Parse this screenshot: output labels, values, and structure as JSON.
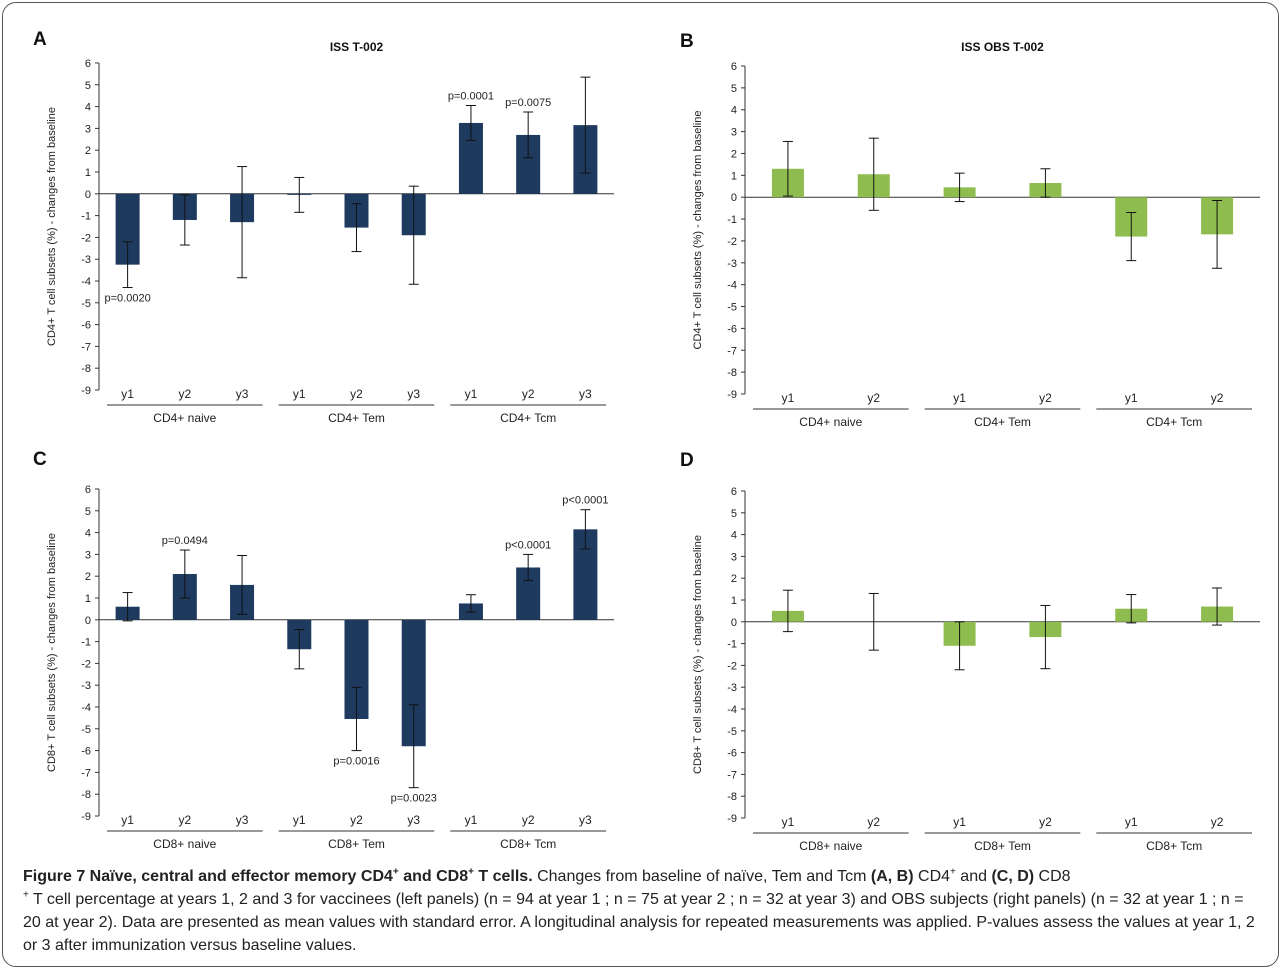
{
  "colors": {
    "vaccinee_bar": "#1e3a5f",
    "obs_bar": "#8fbc4f",
    "axis": "#333333"
  },
  "chart_data": [
    {
      "panel": "A",
      "title": "ISS T-002",
      "type": "bar",
      "ylabel": "CD4+ T cell subsets (%) - changes from baseline",
      "ylim": [
        -9,
        6
      ],
      "yticks": [
        6,
        5,
        4,
        3,
        2,
        1,
        0,
        -1,
        -2,
        -3,
        -4,
        -5,
        -6,
        -7,
        -8,
        -9
      ],
      "color": "#1e3a5f",
      "groups": [
        {
          "label": "CD4+ naive",
          "bars": [
            {
              "x": "y1",
              "value": -3.25,
              "err": 1.05,
              "p": "p=0.0020"
            },
            {
              "x": "y2",
              "value": -1.2,
              "err": 1.15,
              "p": ""
            },
            {
              "x": "y3",
              "value": -1.3,
              "err": 2.55,
              "p": ""
            }
          ]
        },
        {
          "label": "CD4+ Tem",
          "bars": [
            {
              "x": "y1",
              "value": -0.05,
              "err": 0.8,
              "p": ""
            },
            {
              "x": "y2",
              "value": -1.55,
              "err": 1.1,
              "p": ""
            },
            {
              "x": "y3",
              "value": -1.9,
              "err": 2.25,
              "p": ""
            }
          ]
        },
        {
          "label": "CD4+ Tcm",
          "bars": [
            {
              "x": "y1",
              "value": 3.25,
              "err": 0.8,
              "p": "p=0.0001"
            },
            {
              "x": "y2",
              "value": 2.7,
              "err": 1.05,
              "p": "p=0.0075"
            },
            {
              "x": "y3",
              "value": 3.15,
              "err": 2.2,
              "p": ""
            }
          ]
        }
      ]
    },
    {
      "panel": "B",
      "title": "ISS OBS T-002",
      "type": "bar",
      "ylabel": "CD4+ T cell subsets (%) - changes from baseline",
      "ylim": [
        -9,
        6
      ],
      "yticks": [
        6,
        5,
        4,
        3,
        2,
        1,
        0,
        -1,
        -2,
        -3,
        -4,
        -5,
        -6,
        -7,
        -8,
        -9
      ],
      "color": "#8fbc4f",
      "groups": [
        {
          "label": "CD4+ naive",
          "bars": [
            {
              "x": "y1",
              "value": 1.3,
              "err": 1.25,
              "p": ""
            },
            {
              "x": "y2",
              "value": 1.05,
              "err": 1.65,
              "p": ""
            }
          ]
        },
        {
          "label": "CD4+ Tem",
          "bars": [
            {
              "x": "y1",
              "value": 0.45,
              "err": 0.65,
              "p": ""
            },
            {
              "x": "y2",
              "value": 0.65,
              "err": 0.65,
              "p": ""
            }
          ]
        },
        {
          "label": "CD4+ Tcm",
          "bars": [
            {
              "x": "y1",
              "value": -1.8,
              "err": 1.1,
              "p": ""
            },
            {
              "x": "y2",
              "value": -1.7,
              "err": 1.55,
              "p": ""
            }
          ]
        }
      ]
    },
    {
      "panel": "C",
      "title": "",
      "type": "bar",
      "ylabel": "CD8+ T cell subsets (%) - changes from baseline",
      "ylim": [
        -9,
        6
      ],
      "yticks": [
        6,
        5,
        4,
        3,
        2,
        1,
        0,
        -1,
        -2,
        -3,
        -4,
        -5,
        -6,
        -7,
        -8,
        -9
      ],
      "color": "#1e3a5f",
      "groups": [
        {
          "label": "CD8+ naive",
          "bars": [
            {
              "x": "y1",
              "value": 0.6,
              "err": 0.65,
              "p": ""
            },
            {
              "x": "y2",
              "value": 2.1,
              "err": 1.1,
              "p": "p=0.0494"
            },
            {
              "x": "y3",
              "value": 1.6,
              "err": 1.35,
              "p": ""
            }
          ]
        },
        {
          "label": "CD8+ Tem",
          "bars": [
            {
              "x": "y1",
              "value": -1.35,
              "err": 0.9,
              "p": ""
            },
            {
              "x": "y2",
              "value": -4.55,
              "err": 1.45,
              "p": "p=0.0016"
            },
            {
              "x": "y3",
              "value": -5.8,
              "err": 1.9,
              "p": "p=0.0023"
            }
          ]
        },
        {
          "label": "CD8+ Tcm",
          "bars": [
            {
              "x": "y1",
              "value": 0.75,
              "err": 0.4,
              "p": ""
            },
            {
              "x": "y2",
              "value": 2.4,
              "err": 0.6,
              "p": "p<0.0001"
            },
            {
              "x": "y3",
              "value": 4.15,
              "err": 0.9,
              "p": "p<0.0001"
            }
          ]
        }
      ]
    },
    {
      "panel": "D",
      "title": "",
      "type": "bar",
      "ylabel": "CD8+ T cell subsets (%) - changes from baseline",
      "ylim": [
        -9,
        6
      ],
      "yticks": [
        6,
        5,
        4,
        3,
        2,
        1,
        0,
        -1,
        -2,
        -3,
        -4,
        -5,
        -6,
        -7,
        -8,
        -9
      ],
      "color": "#8fbc4f",
      "groups": [
        {
          "label": "CD8+ naive",
          "bars": [
            {
              "x": "y1",
              "value": 0.5,
              "err": 0.95,
              "p": ""
            },
            {
              "x": "y2",
              "value": 0.0,
              "err": 1.3,
              "p": ""
            }
          ]
        },
        {
          "label": "CD8+ Tem",
          "bars": [
            {
              "x": "y1",
              "value": -1.1,
              "err": 1.1,
              "p": ""
            },
            {
              "x": "y2",
              "value": -0.7,
              "err": 1.45,
              "p": ""
            }
          ]
        },
        {
          "label": "CD8+ Tcm",
          "bars": [
            {
              "x": "y1",
              "value": 0.6,
              "err": 0.65,
              "p": ""
            },
            {
              "x": "y2",
              "value": 0.7,
              "err": 0.85,
              "p": ""
            }
          ]
        }
      ]
    }
  ],
  "caption": {
    "figure_label": "Figure 7 Naïve, central and effector memory CD4",
    "figure_label_sup1": "+",
    "figure_label_mid": " and CD8",
    "figure_label_sup2": "+",
    "figure_label_end": " T cells.",
    "text1": " Changes from baseline of naïve, Tem and Tcm ",
    "ref_ab": "(A, B)",
    "text2": " CD4",
    "sup3": "+",
    "text3": " and ",
    "ref_cd": "(C, D)",
    "text4": " CD8",
    "sup4": "+",
    "text5": " T cell percentage at years 1, 2 and 3 for vaccinees (left panels) (n = 94 at year 1 ; n = 75 at year 2 ; n = 32 at year 3) and OBS subjects (right panels) (n = 32 at year 1 ; n = 20 at year 2). Data are presented as mean values with standard error. A longitudinal analysis for repeated measurements was applied. P-values assess the values at year 1, 2 or 3 after immunization versus baseline values."
  }
}
